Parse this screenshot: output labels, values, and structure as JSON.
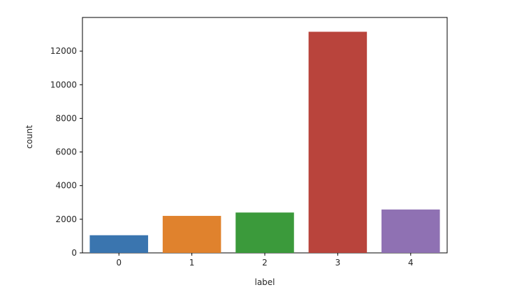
{
  "chart_data": {
    "type": "bar",
    "categories": [
      "0",
      "1",
      "2",
      "3",
      "4"
    ],
    "values": [
      1050,
      2200,
      2400,
      13150,
      2580
    ],
    "colors": [
      "#3a75af",
      "#e0822d",
      "#3b9a3b",
      "#b9443c",
      "#8f71b3"
    ],
    "xlabel": "label",
    "ylabel": "count",
    "yticks": [
      0,
      2000,
      4000,
      6000,
      8000,
      10000,
      12000
    ],
    "ylim": [
      0,
      14000
    ],
    "grid": false,
    "legend": "none"
  }
}
